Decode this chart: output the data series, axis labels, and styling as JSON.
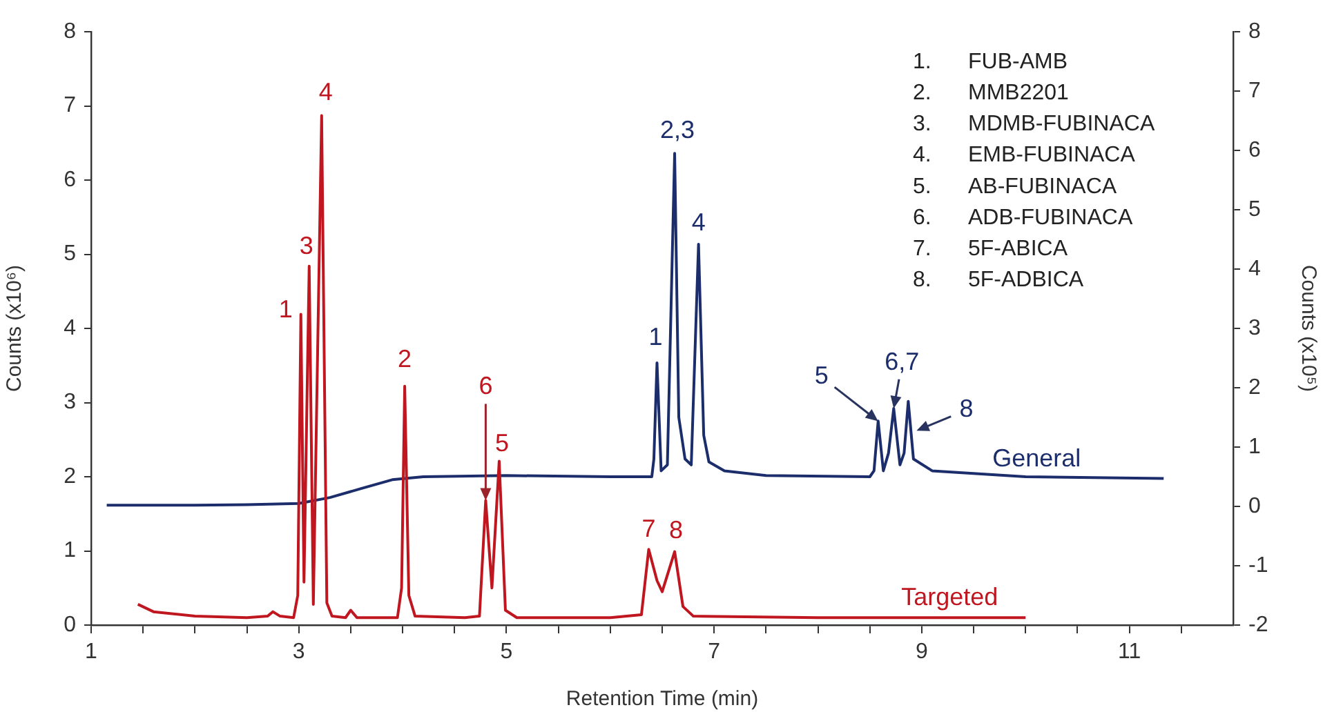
{
  "chart_data": {
    "type": "line",
    "xlabel": "Retention Time (min)",
    "ylabel": "Counts (x10⁶)",
    "y2label": "Counts (x10⁵)",
    "xlim": [
      1,
      12
    ],
    "xticks": [
      1,
      {
        "value": 1.5,
        "label": null
      },
      {
        "value": 2,
        "label": null
      },
      {
        "value": 2.5,
        "label": null
      },
      3,
      {
        "value": 3.5,
        "label": null
      },
      {
        "value": 4,
        "label": null
      },
      {
        "value": 4.5,
        "label": null
      },
      5,
      {
        "value": 5.5,
        "label": null
      },
      {
        "value": 6,
        "label": null
      },
      {
        "value": 6.5,
        "label": null
      },
      7,
      {
        "value": 7.5,
        "label": null
      },
      {
        "value": 8,
        "label": null
      },
      {
        "value": 8.5,
        "label": null
      },
      9,
      {
        "value": 9.5,
        "label": null
      },
      {
        "value": 10,
        "label": null
      },
      {
        "value": 10.5,
        "label": null
      },
      11,
      {
        "value": 11.5,
        "label": null
      }
    ],
    "ylim": [
      0,
      8
    ],
    "yticks": [
      0,
      1,
      2,
      3,
      4,
      5,
      6,
      7,
      8
    ],
    "y2lim": [
      -2,
      8
    ],
    "y2ticks": [
      -2,
      -1,
      0,
      1,
      2,
      3,
      4,
      5,
      6,
      7,
      8
    ],
    "legend": false,
    "grid": false,
    "marker": "none",
    "line_style": "solid",
    "series": [
      {
        "name": "Targeted",
        "color": "#c0161f",
        "x": [
          1.45,
          1.6,
          2.0,
          2.5,
          2.7,
          2.75,
          2.82,
          2.95,
          2.99,
          3.02,
          3.05,
          3.1,
          3.14,
          3.22,
          3.27,
          3.32,
          3.45,
          3.5,
          3.56,
          3.95,
          3.99,
          4.02,
          4.06,
          4.12,
          4.6,
          4.74,
          4.8,
          4.86,
          4.93,
          4.99,
          5.1,
          6.0,
          6.3,
          6.37,
          6.45,
          6.5,
          6.62,
          6.7,
          6.8,
          8.0,
          10.0
        ],
        "values": [
          0.28,
          0.18,
          0.12,
          0.1,
          0.12,
          0.18,
          0.12,
          0.1,
          0.4,
          4.19,
          0.58,
          4.84,
          0.28,
          6.87,
          0.3,
          0.12,
          0.1,
          0.2,
          0.1,
          0.1,
          0.5,
          3.22,
          0.4,
          0.12,
          0.1,
          0.12,
          1.68,
          0.5,
          2.21,
          0.2,
          0.1,
          0.1,
          0.14,
          1.02,
          0.6,
          0.45,
          0.99,
          0.25,
          0.12,
          0.1,
          0.1
        ]
      },
      {
        "name": "General",
        "color": "#1c2d6b",
        "axis": "y2",
        "x": [
          1.15,
          2.0,
          2.5,
          3.0,
          3.3,
          3.6,
          3.9,
          4.2,
          5.0,
          6.0,
          6.4,
          6.42,
          6.45,
          6.49,
          6.55,
          6.62,
          6.66,
          6.72,
          6.78,
          6.85,
          6.9,
          6.95,
          7.1,
          7.5,
          8.5,
          8.54,
          8.58,
          8.63,
          8.68,
          8.73,
          8.79,
          8.83,
          8.87,
          8.92,
          9.1,
          10.0,
          11.33
        ],
        "values": [
          0.02,
          0.02,
          0.03,
          0.05,
          0.15,
          0.3,
          0.45,
          0.5,
          0.52,
          0.5,
          0.5,
          0.8,
          2.42,
          0.6,
          0.7,
          5.95,
          1.5,
          0.8,
          0.7,
          4.42,
          1.2,
          0.75,
          0.6,
          0.52,
          0.5,
          0.6,
          1.44,
          0.6,
          0.9,
          1.65,
          0.7,
          0.9,
          1.77,
          0.8,
          0.6,
          0.5,
          0.47
        ]
      }
    ],
    "annotations": [
      {
        "text": "1",
        "x": 3.02,
        "y": 4.19
      },
      {
        "text": "3",
        "x": 3.1,
        "y": 4.84
      },
      {
        "text": "4",
        "x": 3.22,
        "y": 6.87
      },
      {
        "text": "2",
        "x": 4.02,
        "y": 3.22
      },
      {
        "text": "6",
        "x": 4.8,
        "y": 1.68
      },
      {
        "text": "5",
        "x": 4.93,
        "y": 2.21
      },
      {
        "text": "7",
        "x": 6.37,
        "y": 1.02
      },
      {
        "text": "8",
        "x": 6.62,
        "y": 0.99
      },
      {
        "text": "1",
        "x": 6.45,
        "y": 3.53
      },
      {
        "text": "2,3",
        "x": 6.62,
        "y": 6.36
      },
      {
        "text": "4",
        "x": 6.85,
        "y": 5.13
      },
      {
        "text": "5",
        "x": 8.58,
        "y": 2.75
      },
      {
        "text": "6,7",
        "x": 8.73,
        "y": 2.92
      },
      {
        "text": "8",
        "x": 8.95,
        "y": 2.62
      },
      "1. FUB-AMB",
      "2. MMB2201",
      "3. MDMB-FUBINACA",
      "4. EMB-FUBINACA",
      "5. AB-FUBINACA",
      "6. ADB-FUBINACA",
      "7. 5F-ABICA",
      "8. 5F-ADBICA"
    ]
  }
}
